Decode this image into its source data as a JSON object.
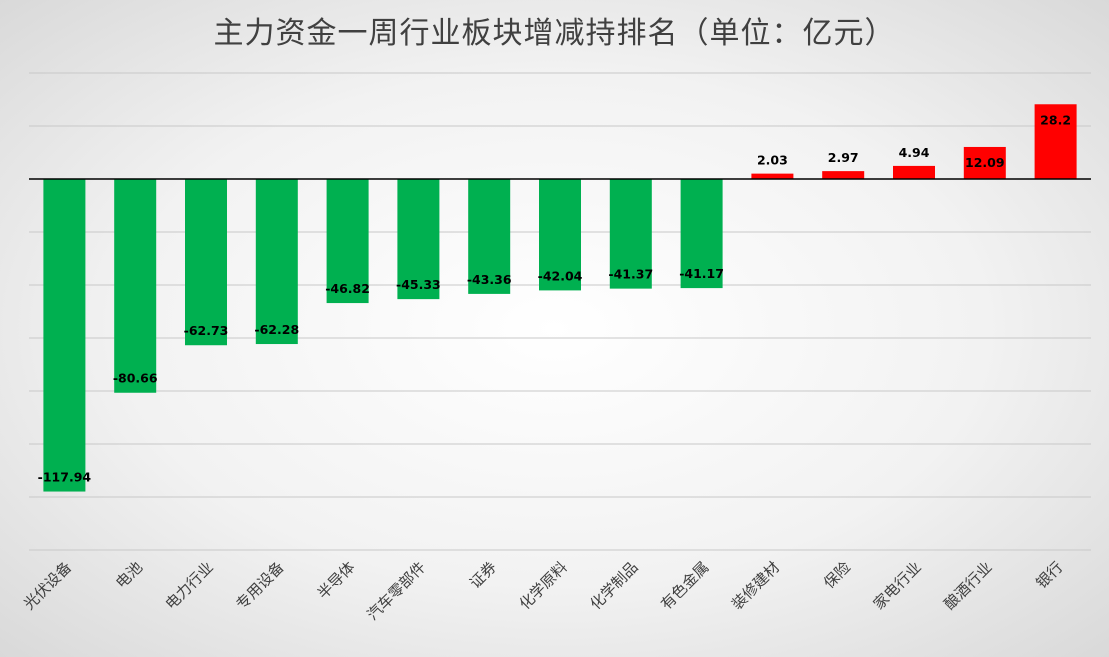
{
  "chart_data": {
    "type": "bar",
    "title": "主力资金一周行业板块增减持排名（单位：亿元）",
    "categories": [
      "光伏设备",
      "电池",
      "电力行业",
      "专用设备",
      "半导体",
      "汽车零部件",
      "证券",
      "化学原料",
      "化学制品",
      "有色金属",
      "装修建材",
      "保险",
      "家电行业",
      "酿酒行业",
      "银行"
    ],
    "values": [
      -117.94,
      -80.66,
      -62.73,
      -62.28,
      -46.82,
      -45.33,
      -43.36,
      -42.04,
      -41.37,
      -41.17,
      2.03,
      2.97,
      4.94,
      12.09,
      28.2
    ],
    "data_labels": [
      "-117.94",
      "-80.66",
      "-62.73",
      "-62.28",
      "-46.82",
      "-45.33",
      "-43.36",
      "-42.04",
      "-41.37",
      "-41.17",
      "2.03",
      "2.97",
      "4.94",
      "12.09",
      "28.2"
    ],
    "ylim": [
      -140,
      40
    ],
    "y_gridline_step": 20,
    "grid": true,
    "legend": "none",
    "colors": {
      "negative": "#00b050",
      "positive": "#ff0000",
      "grid": "#c8c8c8",
      "axis": "#000000"
    }
  }
}
